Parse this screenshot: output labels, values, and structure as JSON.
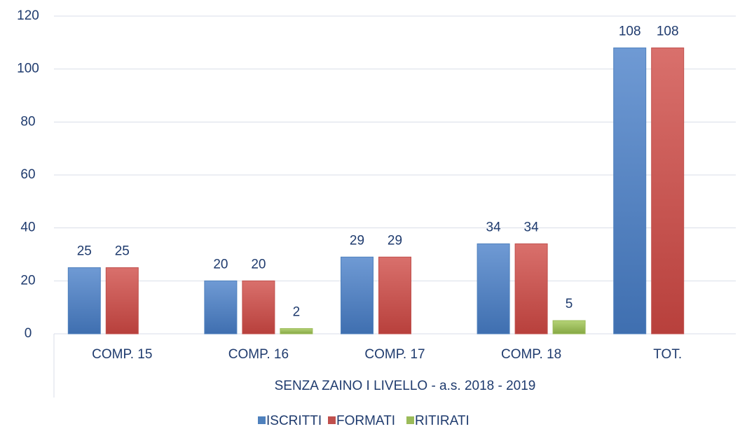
{
  "chart_data": {
    "type": "bar",
    "categories": [
      "COMP. 15",
      "COMP. 16",
      "COMP. 17",
      "COMP. 18",
      "TOT."
    ],
    "series": [
      {
        "name": "ISCRITTI",
        "color": "#4f81bd",
        "values": [
          25,
          20,
          29,
          34,
          108
        ]
      },
      {
        "name": "FORMATI",
        "color": "#c0504d",
        "values": [
          25,
          20,
          29,
          34,
          108
        ]
      },
      {
        "name": "RITIRATI",
        "color": "#9bbb59",
        "values": [
          null,
          2,
          null,
          5,
          null
        ]
      }
    ],
    "x_label": "SENZA ZAINO I LIVELLO - a.s. 2018 - 2019",
    "ylim": [
      0,
      120
    ],
    "yticks": [
      0,
      20,
      40,
      60,
      80,
      100,
      120
    ],
    "grid": true,
    "legend": "bottom"
  }
}
